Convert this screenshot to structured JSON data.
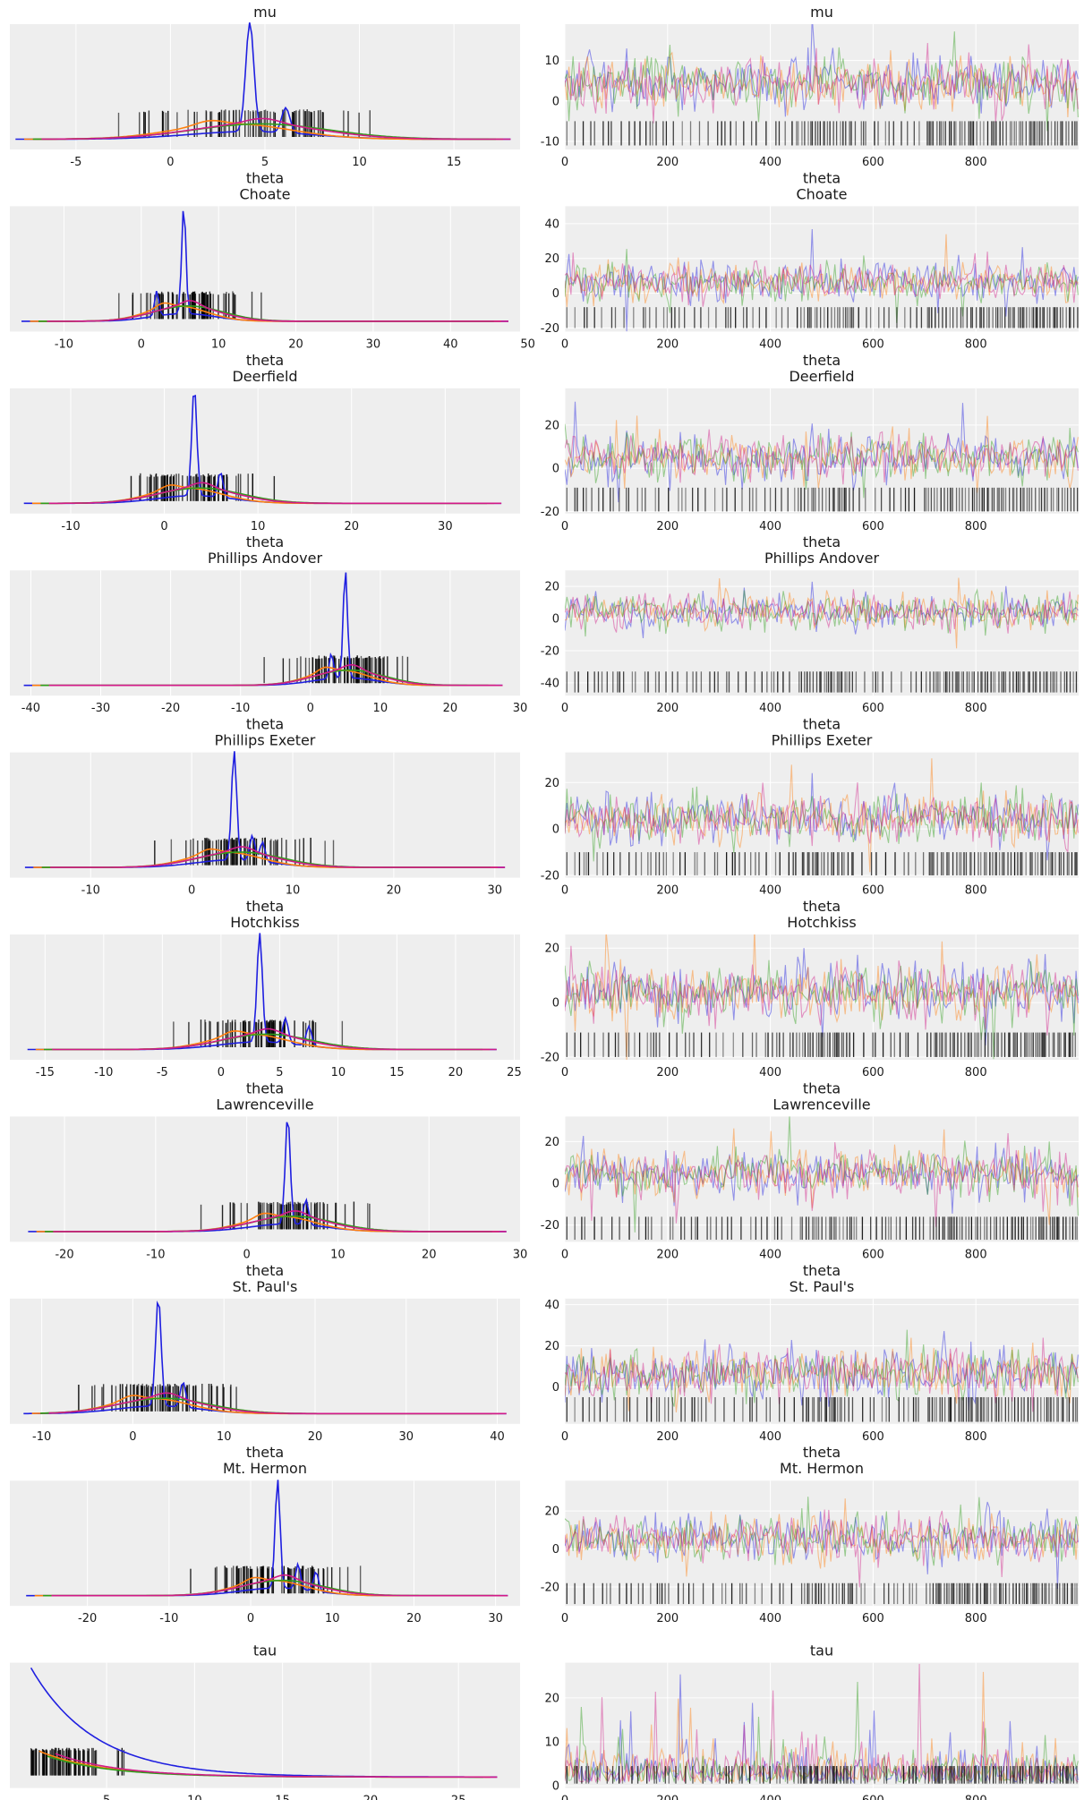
{
  "figure": {
    "type": "trace-plot",
    "columns": 2
  },
  "colors": {
    "background": "#eeeeee",
    "grid": "#ffffff",
    "chains": [
      "#1f1fe0",
      "#ff7f0e",
      "#2f9e1a",
      "#d11a88"
    ],
    "rug": "#000000"
  },
  "chart_data": [
    {
      "type": "line",
      "name": "mu",
      "title_lines": [
        "mu"
      ],
      "left": {
        "xlim": [
          -8.5,
          18.5
        ],
        "xticks": [
          "-5",
          "0",
          "5",
          "10",
          "15"
        ],
        "xtick_values": [
          -5,
          0,
          5,
          10,
          15
        ],
        "range": [
          -8.2,
          18.0
        ],
        "support_min": null,
        "peak": 4.2,
        "spread": 3.6,
        "spikes": [
          4.2,
          6.1
        ],
        "xgrid": [
          -5,
          0,
          5,
          10,
          15
        ]
      },
      "right": {
        "ylim": [
          -12,
          19
        ],
        "yticks": [
          "-10",
          "0",
          "10"
        ],
        "ytick_values": [
          -10,
          0,
          10
        ],
        "xlim": [
          0,
          1000
        ],
        "xticks": [
          "0",
          "200",
          "400",
          "600",
          "800"
        ],
        "xtick_values": [
          0,
          200,
          400,
          600,
          800
        ],
        "mean": 4.4,
        "sd": 3.2,
        "rug_band": [
          -11,
          -5
        ]
      }
    },
    {
      "type": "line",
      "name": "theta Choate",
      "title_lines": [
        "theta",
        "Choate"
      ],
      "left": {
        "xlim": [
          -17,
          49
        ],
        "xticks": [
          "-10",
          "0",
          "10",
          "20",
          "30",
          "40",
          "50"
        ],
        "xtick_values": [
          -10,
          0,
          10,
          20,
          30,
          40,
          50
        ],
        "range": [
          -15.5,
          47.5
        ],
        "support_min": null,
        "peak": 5.5,
        "spread": 4.5,
        "spikes": [
          5.5,
          2.0
        ],
        "xgrid": [
          -10,
          0,
          10,
          20,
          30,
          40
        ]
      },
      "right": {
        "ylim": [
          -22,
          50
        ],
        "yticks": [
          "-20",
          "0",
          "20",
          "40"
        ],
        "ytick_values": [
          -20,
          0,
          20,
          40
        ],
        "xlim": [
          0,
          1000
        ],
        "xticks": [
          "0",
          "200",
          "400",
          "600",
          "800"
        ],
        "xtick_values": [
          0,
          200,
          400,
          600,
          800
        ],
        "mean": 6.2,
        "sd": 5.5,
        "rug_band": [
          -20,
          -8
        ]
      }
    },
    {
      "type": "line",
      "name": "theta Deerfield",
      "title_lines": [
        "theta",
        "Deerfield"
      ],
      "left": {
        "xlim": [
          -16.5,
          38
        ],
        "xticks": [
          "-10",
          "0",
          "10",
          "20",
          "30"
        ],
        "xtick_values": [
          -10,
          0,
          10,
          20,
          30
        ],
        "range": [
          -15,
          36
        ],
        "support_min": null,
        "peak": 3.2,
        "spread": 4.5,
        "spikes": [
          3.2,
          6.0
        ],
        "xgrid": [
          -10,
          0,
          10,
          20,
          30
        ]
      },
      "right": {
        "ylim": [
          -21,
          37
        ],
        "yticks": [
          "-20",
          "0",
          "20"
        ],
        "ytick_values": [
          -20,
          0,
          20
        ],
        "xlim": [
          0,
          1000
        ],
        "xticks": [
          "0",
          "200",
          "400",
          "600",
          "800"
        ],
        "xtick_values": [
          0,
          200,
          400,
          600,
          800
        ],
        "mean": 5.0,
        "sd": 5.0,
        "rug_band": [
          -20,
          -9
        ]
      }
    },
    {
      "type": "line",
      "name": "theta Phillips Andover",
      "title_lines": [
        "theta",
        "Phillips Andover"
      ],
      "left": {
        "xlim": [
          -43,
          30
        ],
        "xticks": [
          "-40",
          "-30",
          "-20",
          "-10",
          "0",
          "10",
          "20",
          "30"
        ],
        "xtick_values": [
          -40,
          -30,
          -20,
          -10,
          0,
          10,
          20,
          30
        ],
        "range": [
          -41,
          27.5
        ],
        "support_min": null,
        "peak": 5.0,
        "spread": 5.0,
        "spikes": [
          5.0,
          3.0
        ],
        "xgrid": [
          -40,
          -30,
          -20,
          -10,
          0,
          10,
          20
        ]
      },
      "right": {
        "ylim": [
          -48,
          30
        ],
        "yticks": [
          "-40",
          "-20",
          "0",
          "20"
        ],
        "ytick_values": [
          -40,
          -20,
          0,
          20
        ],
        "xlim": [
          0,
          1000
        ],
        "xticks": [
          "0",
          "200",
          "400",
          "600",
          "800"
        ],
        "xtick_values": [
          0,
          200,
          400,
          600,
          800
        ],
        "mean": 4.5,
        "sd": 5.5,
        "rug_band": [
          -46,
          -33
        ]
      }
    },
    {
      "type": "line",
      "name": "theta Phillips Exeter",
      "title_lines": [
        "theta",
        "Phillips Exeter"
      ],
      "left": {
        "xlim": [
          -18,
          32.5
        ],
        "xticks": [
          "-10",
          "0",
          "10",
          "20",
          "30"
        ],
        "xtick_values": [
          -10,
          0,
          10,
          20,
          30
        ],
        "range": [
          -16.5,
          31
        ],
        "support_min": null,
        "peak": 4.2,
        "spread": 4.2,
        "spikes": [
          4.2,
          6.0,
          7.0
        ],
        "xgrid": [
          -10,
          0,
          10,
          20,
          30
        ]
      },
      "right": {
        "ylim": [
          -21,
          33
        ],
        "yticks": [
          "-20",
          "0",
          "20"
        ],
        "ytick_values": [
          -20,
          0,
          20
        ],
        "xlim": [
          0,
          1000
        ],
        "xticks": [
          "0",
          "200",
          "400",
          "600",
          "800"
        ],
        "xtick_values": [
          0,
          200,
          400,
          600,
          800
        ],
        "mean": 4.5,
        "sd": 5.0,
        "rug_band": [
          -20,
          -10
        ]
      }
    },
    {
      "type": "line",
      "name": "theta Hotchkiss",
      "title_lines": [
        "theta",
        "Hotchkiss"
      ],
      "left": {
        "xlim": [
          -18,
          25.5
        ],
        "xticks": [
          "-15",
          "-10",
          "-5",
          "0",
          "5",
          "10",
          "15",
          "20",
          "25"
        ],
        "xtick_values": [
          -15,
          -10,
          -5,
          0,
          5,
          10,
          15,
          20,
          25
        ],
        "range": [
          -16.5,
          23.5
        ],
        "support_min": null,
        "peak": 3.3,
        "spread": 3.8,
        "spikes": [
          3.3,
          5.5,
          7.5
        ],
        "xgrid": [
          -15,
          -10,
          -5,
          0,
          5,
          10,
          15,
          20,
          25
        ]
      },
      "right": {
        "ylim": [
          -21,
          25
        ],
        "yticks": [
          "-20",
          "0",
          "20"
        ],
        "ytick_values": [
          -20,
          0,
          20
        ],
        "xlim": [
          0,
          1000
        ],
        "xticks": [
          "0",
          "200",
          "400",
          "600",
          "800"
        ],
        "xtick_values": [
          0,
          200,
          400,
          600,
          800
        ],
        "mean": 3.8,
        "sd": 5.0,
        "rug_band": [
          -20,
          -11
        ]
      }
    },
    {
      "type": "line",
      "name": "theta Lawrenceville",
      "title_lines": [
        "theta",
        "Lawrenceville"
      ],
      "left": {
        "xlim": [
          -26,
          30
        ],
        "xticks": [
          "-20",
          "-10",
          "0",
          "10",
          "20",
          "30"
        ],
        "xtick_values": [
          -20,
          -10,
          0,
          10,
          20,
          30
        ],
        "range": [
          -24,
          28.5
        ],
        "support_min": null,
        "peak": 4.5,
        "spread": 4.5,
        "spikes": [
          4.5,
          6.5
        ],
        "xgrid": [
          -20,
          -10,
          0,
          10,
          20
        ]
      },
      "right": {
        "ylim": [
          -28,
          32
        ],
        "yticks": [
          "-20",
          "0",
          "20"
        ],
        "ytick_values": [
          -20,
          0,
          20
        ],
        "xlim": [
          0,
          1000
        ],
        "xticks": [
          "0",
          "200",
          "400",
          "600",
          "800"
        ],
        "xtick_values": [
          0,
          200,
          400,
          600,
          800
        ],
        "mean": 4.5,
        "sd": 5.5,
        "rug_band": [
          -27,
          -16
        ]
      }
    },
    {
      "type": "line",
      "name": "theta St. Paul's",
      "title_lines": [
        "theta",
        "St. Paul's"
      ],
      "left": {
        "xlim": [
          -13.5,
          42.5
        ],
        "xticks": [
          "-10",
          "0",
          "10",
          "20",
          "30",
          "40"
        ],
        "xtick_values": [
          -10,
          0,
          10,
          20,
          30,
          40
        ],
        "range": [
          -12,
          41
        ],
        "support_min": null,
        "peak": 2.8,
        "spread": 5.0,
        "spikes": [
          2.8,
          5.5
        ],
        "xgrid": [
          -10,
          0,
          10,
          20,
          30,
          40
        ]
      },
      "right": {
        "ylim": [
          -18,
          43
        ],
        "yticks": [
          "0",
          "20",
          "40"
        ],
        "ytick_values": [
          0,
          20,
          40
        ],
        "xlim": [
          0,
          1000
        ],
        "xticks": [
          "0",
          "200",
          "400",
          "600",
          "800"
        ],
        "xtick_values": [
          0,
          200,
          400,
          600,
          800
        ],
        "mean": 6.5,
        "sd": 6.0,
        "rug_band": [
          -17,
          -5
        ]
      }
    },
    {
      "type": "line",
      "name": "theta Mt. Hermon",
      "title_lines": [
        "theta",
        "Mt. Hermon"
      ],
      "left": {
        "xlim": [
          -29.5,
          33
        ],
        "xticks": [
          "-20",
          "-10",
          "0",
          "10",
          "20",
          "30"
        ],
        "xtick_values": [
          -20,
          -10,
          0,
          10,
          20,
          30
        ],
        "range": [
          -27.5,
          31.5
        ],
        "support_min": null,
        "peak": 3.3,
        "spread": 5.0,
        "spikes": [
          3.3,
          5.8,
          8.0
        ],
        "xgrid": [
          -20,
          -10,
          0,
          10,
          20,
          30
        ]
      },
      "right": {
        "ylim": [
          -30,
          36
        ],
        "yticks": [
          "-20",
          "0",
          "20"
        ],
        "ytick_values": [
          -20,
          0,
          20
        ],
        "xlim": [
          0,
          1000
        ],
        "xticks": [
          "0",
          "200",
          "400",
          "600",
          "800"
        ],
        "xtick_values": [
          0,
          200,
          400,
          600,
          800
        ],
        "mean": 5.0,
        "sd": 6.0,
        "rug_band": [
          -29,
          -18
        ]
      }
    },
    {
      "type": "line",
      "name": "tau",
      "title_lines": [
        "tau"
      ],
      "left": {
        "xlim": [
          -0.5,
          28.5
        ],
        "xticks": [
          "5",
          "10",
          "15",
          "20",
          "25"
        ],
        "xtick_values": [
          5,
          10,
          15,
          20,
          25
        ],
        "range": [
          0.7,
          27.2
        ],
        "support_min": 0.7,
        "peak": 1.0,
        "spread": 4.0,
        "spikes": [],
        "xgrid": [
          5,
          10,
          15,
          20,
          25
        ]
      },
      "right": {
        "ylim": [
          -0.5,
          28
        ],
        "yticks": [
          "0",
          "10",
          "20"
        ],
        "ytick_values": [
          0,
          10,
          20
        ],
        "xlim": [
          0,
          1000
        ],
        "xticks": [
          "0",
          "200",
          "400",
          "600",
          "800"
        ],
        "xtick_values": [
          0,
          200,
          400,
          600,
          800
        ],
        "mean": 3.6,
        "sd": 3.3,
        "rug_band": [
          0.5,
          4.5
        ]
      }
    }
  ]
}
